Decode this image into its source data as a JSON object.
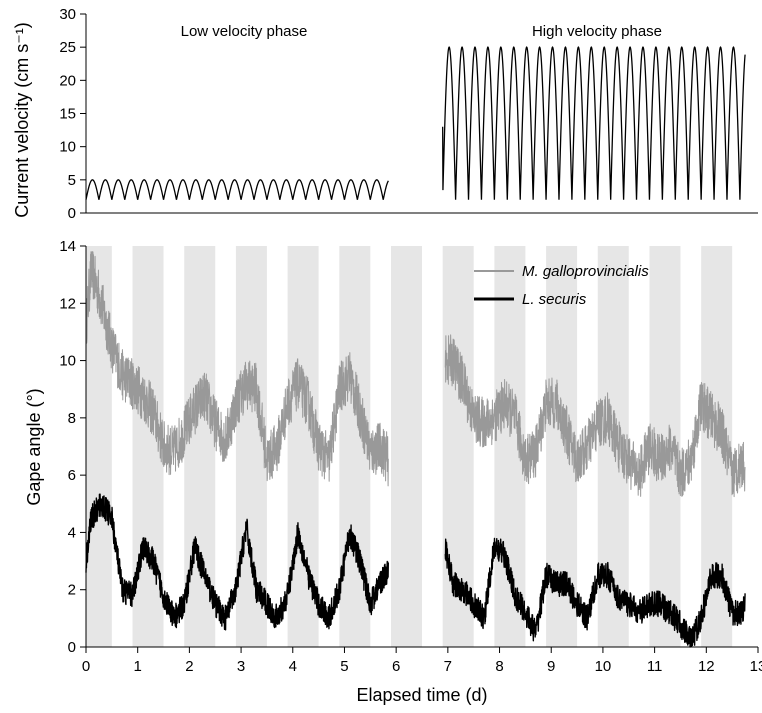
{
  "chart_data": [
    {
      "type": "line",
      "panel": "top",
      "ylabel": "Current velocity (cm s⁻¹)",
      "ylim": [
        0,
        30
      ],
      "yticks": [
        0,
        5,
        10,
        15,
        20,
        25,
        30
      ],
      "xlim": [
        0,
        13
      ],
      "annotations": [
        "Low velocity phase",
        "High velocity phase"
      ],
      "series": [
        {
          "color": "#000000",
          "segments": [
            {
              "x_start": 0,
              "x_end": 5.85,
              "min": 2,
              "max": 5,
              "period_d": 0.25
            },
            {
              "x_start": 6.9,
              "x_end": 12.75,
              "min": 2,
              "max": 25,
              "period_d": 0.25,
              "start_value": 13
            }
          ]
        }
      ]
    },
    {
      "type": "line",
      "panel": "bottom",
      "xlabel": "Elapsed time (d)",
      "ylabel": "Gape angle (°)",
      "ylim": [
        0,
        14
      ],
      "yticks": [
        0,
        2,
        4,
        6,
        8,
        10,
        12,
        14
      ],
      "xlim": [
        0,
        13
      ],
      "xticks": [
        0,
        1,
        2,
        3,
        4,
        5,
        6,
        7,
        8,
        9,
        10,
        11,
        12,
        13
      ],
      "legend": {
        "position": "top-right"
      },
      "shaded_bands": [
        [
          0,
          0.5
        ],
        [
          0.9,
          1.5
        ],
        [
          1.9,
          2.5
        ],
        [
          2.9,
          3.5
        ],
        [
          3.9,
          4.5
        ],
        [
          4.9,
          5.5
        ],
        [
          5.9,
          6.5
        ],
        [
          6.9,
          7.5
        ],
        [
          7.9,
          8.5
        ],
        [
          8.9,
          9.5
        ],
        [
          9.9,
          10.5
        ],
        [
          10.9,
          11.5
        ],
        [
          11.9,
          12.5
        ]
      ],
      "series": [
        {
          "name": "M. galloprovincialis",
          "color": "#999999",
          "x": [
            0,
            0.1,
            0.3,
            0.5,
            0.7,
            0.9,
            1.1,
            1.3,
            1.5,
            1.7,
            1.9,
            2.1,
            2.3,
            2.5,
            2.7,
            2.9,
            3.1,
            3.3,
            3.5,
            3.7,
            3.9,
            4.1,
            4.3,
            4.5,
            4.7,
            4.9,
            5.1,
            5.3,
            5.5,
            5.7,
            5.85,
            6.95,
            7.1,
            7.3,
            7.5,
            7.7,
            7.9,
            8.1,
            8.3,
            8.5,
            8.7,
            8.9,
            9.1,
            9.3,
            9.5,
            9.7,
            9.9,
            10.1,
            10.3,
            10.5,
            10.7,
            10.9,
            11.1,
            11.3,
            11.5,
            11.7,
            11.9,
            12.1,
            12.3,
            12.5,
            12.7,
            12.75
          ],
          "y": [
            11.2,
            13.2,
            12,
            10.5,
            9.5,
            9.2,
            8.8,
            8.2,
            7,
            6.8,
            7.5,
            8.3,
            8.8,
            7.8,
            7.2,
            8.5,
            9.2,
            9,
            6.5,
            7,
            8.5,
            9.2,
            8.5,
            7,
            6.5,
            9,
            9.5,
            8.2,
            6.8,
            7,
            6.5,
            10,
            10,
            9.2,
            8,
            7.8,
            8,
            8.5,
            8,
            6.5,
            6.8,
            8.5,
            8.5,
            7.5,
            6.5,
            7,
            7.8,
            8,
            7,
            6.5,
            6,
            7,
            6.5,
            7,
            6,
            6.5,
            8.5,
            8,
            7.5,
            6,
            6.5,
            6
          ]
        },
        {
          "name": "L. securis",
          "color": "#000000",
          "x": [
            0,
            0.1,
            0.3,
            0.5,
            0.7,
            0.9,
            1.1,
            1.3,
            1.5,
            1.7,
            1.9,
            2.1,
            2.3,
            2.5,
            2.7,
            2.9,
            3.1,
            3.3,
            3.5,
            3.7,
            3.9,
            4.1,
            4.3,
            4.5,
            4.7,
            4.9,
            5.1,
            5.3,
            5.5,
            5.7,
            5.85,
            6.95,
            7.1,
            7.3,
            7.5,
            7.7,
            7.9,
            8.1,
            8.3,
            8.5,
            8.7,
            8.9,
            9.1,
            9.3,
            9.5,
            9.7,
            9.9,
            10.1,
            10.3,
            10.5,
            10.7,
            10.9,
            11.1,
            11.3,
            11.5,
            11.7,
            11.9,
            12.1,
            12.3,
            12.5,
            12.7,
            12.75
          ],
          "y": [
            3,
            4.5,
            5,
            4.5,
            2,
            1.8,
            3.5,
            3,
            1.8,
            1,
            1.5,
            3.5,
            2.5,
            1.5,
            1,
            2,
            4.2,
            2,
            1.5,
            1,
            1.8,
            4,
            2.5,
            1.5,
            1,
            2,
            4,
            3,
            1.5,
            2.3,
            2.6,
            3.5,
            2.2,
            2,
            1.5,
            1,
            3.5,
            3.2,
            1.8,
            1.2,
            0.5,
            2.5,
            2.2,
            2.2,
            1.5,
            1,
            2.5,
            2.5,
            1.7,
            1.5,
            1.2,
            1.5,
            1.5,
            1.2,
            0.8,
            0.2,
            1,
            2.5,
            2.5,
            1.2,
            1.2,
            1.5
          ]
        }
      ]
    }
  ],
  "axes_text": {
    "top_ylabel": "Current velocity (cm s⁻¹)",
    "bottom_ylabel": "Gape angle (°)",
    "xlabel": "Elapsed time (d)",
    "low_phase": "Low velocity phase",
    "high_phase": "High velocity phase",
    "legend_m": "M. galloprovincialis",
    "legend_l": "L. securis"
  }
}
